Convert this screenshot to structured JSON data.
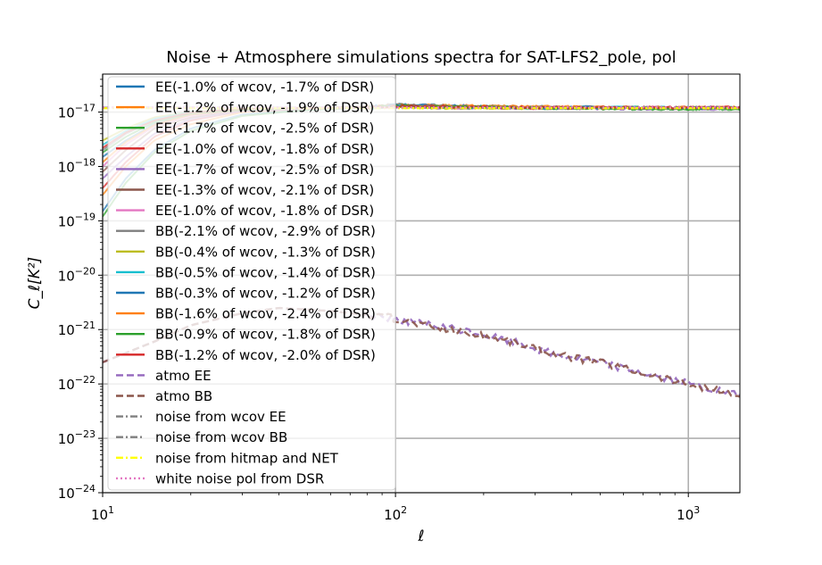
{
  "chart_data": {
    "type": "line",
    "title": "Noise + Atmosphere simulations spectra for SAT-LFS2_pole, pol",
    "xlabel": "ℓ",
    "ylabel": "C_ℓ[K²]",
    "xscale": "log",
    "yscale": "log",
    "xlim": [
      10,
      1500
    ],
    "ylim": [
      1e-24,
      5e-17
    ],
    "grid": true,
    "legend_position": "upper-left",
    "x_ticks": [
      {
        "value": 10,
        "mant": "10",
        "exp": "1"
      },
      {
        "value": 100,
        "mant": "10",
        "exp": "2"
      },
      {
        "value": 1000,
        "mant": "10",
        "exp": "3"
      }
    ],
    "y_ticks": [
      {
        "value": 1e-24,
        "mant": "10",
        "exp": "−24"
      },
      {
        "value": 1e-23,
        "mant": "10",
        "exp": "−23"
      },
      {
        "value": 1e-22,
        "mant": "10",
        "exp": "−22"
      },
      {
        "value": 1e-21,
        "mant": "10",
        "exp": "−21"
      },
      {
        "value": 1e-20,
        "mant": "10",
        "exp": "−20"
      },
      {
        "value": 1e-19,
        "mant": "10",
        "exp": "−19"
      },
      {
        "value": 1e-18,
        "mant": "10",
        "exp": "−18"
      },
      {
        "value": 1e-17,
        "mant": "10",
        "exp": "−17"
      }
    ],
    "series": [
      {
        "name": "EE(-1.0% of wcov, -1.7% of DSR)",
        "color": "#1f77b4",
        "style": "solid",
        "x": [
          10,
          12,
          15,
          20,
          30,
          50,
          80,
          100,
          150,
          300,
          700,
          1500
        ],
        "y": [
          1.5e-19,
          6e-19,
          2e-18,
          5e-18,
          9e-18,
          1.1e-17,
          1.2e-17,
          1.4e-17,
          1.3e-17,
          1.25e-17,
          1.2e-17,
          1.2e-17
        ]
      },
      {
        "name": "EE(-1.2% of wcov, -1.9% of DSR)",
        "color": "#ff7f0e",
        "style": "solid",
        "x": [
          10,
          12,
          15,
          20,
          30,
          50,
          80,
          100,
          150,
          300,
          700,
          1500
        ],
        "y": [
          3e-19,
          1e-18,
          3e-18,
          6e-18,
          1e-17,
          1.15e-17,
          1.25e-17,
          1.35e-17,
          1.3e-17,
          1.25e-17,
          1.2e-17,
          1.2e-17
        ]
      },
      {
        "name": "EE(-1.7% of wcov, -2.5% of DSR)",
        "color": "#2ca02c",
        "style": "solid",
        "x": [
          10,
          12,
          15,
          20,
          30,
          50,
          80,
          100,
          150,
          300,
          700,
          1500
        ],
        "y": [
          1.2e-19,
          5e-19,
          1.8e-18,
          4.5e-18,
          8.5e-18,
          1.1e-17,
          1.2e-17,
          1.3e-17,
          1.25e-17,
          1.2e-17,
          1.15e-17,
          1.15e-17
        ]
      },
      {
        "name": "EE(-1.0% of wcov, -1.8% of DSR)",
        "color": "#d62728",
        "style": "solid",
        "x": [
          10,
          12,
          15,
          20,
          30,
          50,
          80,
          100,
          150,
          300,
          700,
          1500
        ],
        "y": [
          4e-19,
          1.2e-18,
          3.5e-18,
          7e-18,
          1.05e-17,
          1.15e-17,
          1.2e-17,
          1.3e-17,
          1.25e-17,
          1.2e-17,
          1.2e-17,
          1.2e-17
        ]
      },
      {
        "name": "EE(-1.7% of wcov, -2.5% of DSR)",
        "color": "#9467bd",
        "style": "solid",
        "x": [
          10,
          12,
          15,
          20,
          30,
          50,
          80,
          100,
          150,
          300,
          700,
          1500
        ],
        "y": [
          6e-19,
          1.5e-18,
          4e-18,
          7.5e-18,
          1.05e-17,
          1.15e-17,
          1.2e-17,
          1.25e-17,
          1.2e-17,
          1.2e-17,
          1.15e-17,
          1.15e-17
        ]
      },
      {
        "name": "EE(-1.3% of wcov, -2.1% of DSR)",
        "color": "#8c564b",
        "style": "solid",
        "x": [
          10,
          12,
          15,
          20,
          30,
          50,
          80,
          100,
          150,
          300,
          700,
          1500
        ],
        "y": [
          8e-19,
          2e-18,
          5e-18,
          8e-18,
          1.1e-17,
          1.2e-17,
          1.25e-17,
          1.3e-17,
          1.25e-17,
          1.2e-17,
          1.2e-17,
          1.2e-17
        ]
      },
      {
        "name": "EE(-1.0% of wcov, -1.8% of DSR)",
        "color": "#e377c2",
        "style": "solid",
        "x": [
          10,
          12,
          15,
          20,
          30,
          50,
          80,
          100,
          150,
          300,
          700,
          1500
        ],
        "y": [
          1e-18,
          2.5e-18,
          5.5e-18,
          8.5e-18,
          1.1e-17,
          1.2e-17,
          1.25e-17,
          1.25e-17,
          1.2e-17,
          1.2e-17,
          1.2e-17,
          1.2e-17
        ]
      },
      {
        "name": "BB(-2.1% of wcov, -2.9% of DSR)",
        "color": "#7f7f7f",
        "style": "solid",
        "x": [
          10,
          12,
          15,
          20,
          30,
          50,
          80,
          100,
          150,
          300,
          700,
          1500
        ],
        "y": [
          2e-18,
          4e-18,
          7e-18,
          9.5e-18,
          1.1e-17,
          1.2e-17,
          1.2e-17,
          1.25e-17,
          1.2e-17,
          1.2e-17,
          1.2e-17,
          1.2e-17
        ]
      },
      {
        "name": "BB(-0.4% of wcov, -1.3% of DSR)",
        "color": "#bcbd22",
        "style": "solid",
        "x": [
          10,
          12,
          15,
          20,
          30,
          50,
          80,
          100,
          150,
          300,
          700,
          1500
        ],
        "y": [
          3e-18,
          5e-18,
          8e-18,
          1e-17,
          1.15e-17,
          1.2e-17,
          1.2e-17,
          1.25e-17,
          1.2e-17,
          1.2e-17,
          1.2e-17,
          1.2e-17
        ]
      },
      {
        "name": "BB(-0.5% of wcov, -1.4% of DSR)",
        "color": "#17becf",
        "style": "solid",
        "x": [
          10,
          12,
          15,
          20,
          30,
          50,
          80,
          100,
          150,
          300,
          700,
          1500
        ],
        "y": [
          2.5e-18,
          4.5e-18,
          7.5e-18,
          1e-17,
          1.1e-17,
          1.2e-17,
          1.2e-17,
          1.3e-17,
          1.25e-17,
          1.2e-17,
          1.2e-17,
          1.2e-17
        ]
      },
      {
        "name": "BB(-0.3% of wcov, -1.2% of DSR)",
        "color": "#1f77b4",
        "style": "solid",
        "x": [
          10,
          12,
          15,
          20,
          30,
          50,
          80,
          100,
          150,
          300,
          700,
          1500
        ],
        "y": [
          1.5e-18,
          3e-18,
          6e-18,
          9e-18,
          1.1e-17,
          1.2e-17,
          1.25e-17,
          1.35e-17,
          1.3e-17,
          1.2e-17,
          1.2e-17,
          1.2e-17
        ]
      },
      {
        "name": "BB(-1.6% of wcov, -2.4% of DSR)",
        "color": "#ff7f0e",
        "style": "solid",
        "x": [
          10,
          12,
          15,
          20,
          30,
          50,
          80,
          100,
          150,
          300,
          700,
          1500
        ],
        "y": [
          1.2e-18,
          2.8e-18,
          5.8e-18,
          9e-18,
          1.1e-17,
          1.2e-17,
          1.25e-17,
          1.3e-17,
          1.3e-17,
          1.25e-17,
          1.2e-17,
          1.2e-17
        ]
      },
      {
        "name": "BB(-0.9% of wcov, -1.8% of DSR)",
        "color": "#2ca02c",
        "style": "solid",
        "x": [
          10,
          12,
          15,
          20,
          30,
          50,
          80,
          100,
          150,
          300,
          700,
          1500
        ],
        "y": [
          1.8e-18,
          3.5e-18,
          6.5e-18,
          9.5e-18,
          1.1e-17,
          1.2e-17,
          1.2e-17,
          1.3e-17,
          1.25e-17,
          1.2e-17,
          1.15e-17,
          1.15e-17
        ]
      },
      {
        "name": "BB(-1.2% of wcov, -2.0% of DSR)",
        "color": "#d62728",
        "style": "solid",
        "x": [
          10,
          12,
          15,
          20,
          30,
          50,
          80,
          100,
          150,
          300,
          700,
          1500
        ],
        "y": [
          2.2e-18,
          4.2e-18,
          7e-18,
          9.8e-18,
          1.15e-17,
          1.2e-17,
          1.2e-17,
          1.3e-17,
          1.25e-17,
          1.2e-17,
          1.2e-17,
          1.2e-17
        ]
      },
      {
        "name": "atmo EE",
        "color": "#9467bd",
        "style": "dashed",
        "x": [
          10,
          15,
          20,
          30,
          40,
          60,
          100,
          130,
          180,
          250,
          350,
          500,
          700,
          1000,
          1500
        ],
        "y": [
          2.5e-22,
          6e-22,
          1.2e-21,
          2e-21,
          2.5e-21,
          2.2e-21,
          1.6e-21,
          1.2e-21,
          9e-22,
          6e-22,
          3.5e-22,
          2.5e-22,
          1.6e-22,
          1e-22,
          6e-23
        ]
      },
      {
        "name": "atmo BB",
        "color": "#8c564b",
        "style": "dashed",
        "x": [
          10,
          15,
          20,
          30,
          40,
          60,
          100,
          130,
          180,
          250,
          350,
          500,
          700,
          1000,
          1500
        ],
        "y": [
          2.5e-22,
          6e-22,
          1.2e-21,
          2e-21,
          2.5e-21,
          2.2e-21,
          1.6e-21,
          1.15e-21,
          8.5e-22,
          6e-22,
          3.5e-22,
          2.5e-22,
          1.6e-22,
          1e-22,
          6e-23
        ]
      },
      {
        "name": "noise from wcov EE",
        "color": "#7f7f7f",
        "style": "dashdot",
        "x": [
          10,
          1500
        ],
        "y": [
          1.2e-17,
          1.2e-17
        ]
      },
      {
        "name": "noise from wcov BB",
        "color": "#7f7f7f",
        "style": "dashdot",
        "x": [
          10,
          1500
        ],
        "y": [
          1.2e-17,
          1.2e-17
        ]
      },
      {
        "name": "noise from hitmap and NET",
        "color": "#ffff00",
        "style": "dashdot",
        "x": [
          10,
          1500
        ],
        "y": [
          1.18e-17,
          1.18e-17
        ]
      },
      {
        "name": "white noise pol from DSR",
        "color": "#e377c2",
        "style": "dotted",
        "x": [
          10,
          1500
        ],
        "y": [
          1.22e-17,
          1.22e-17
        ]
      }
    ]
  }
}
